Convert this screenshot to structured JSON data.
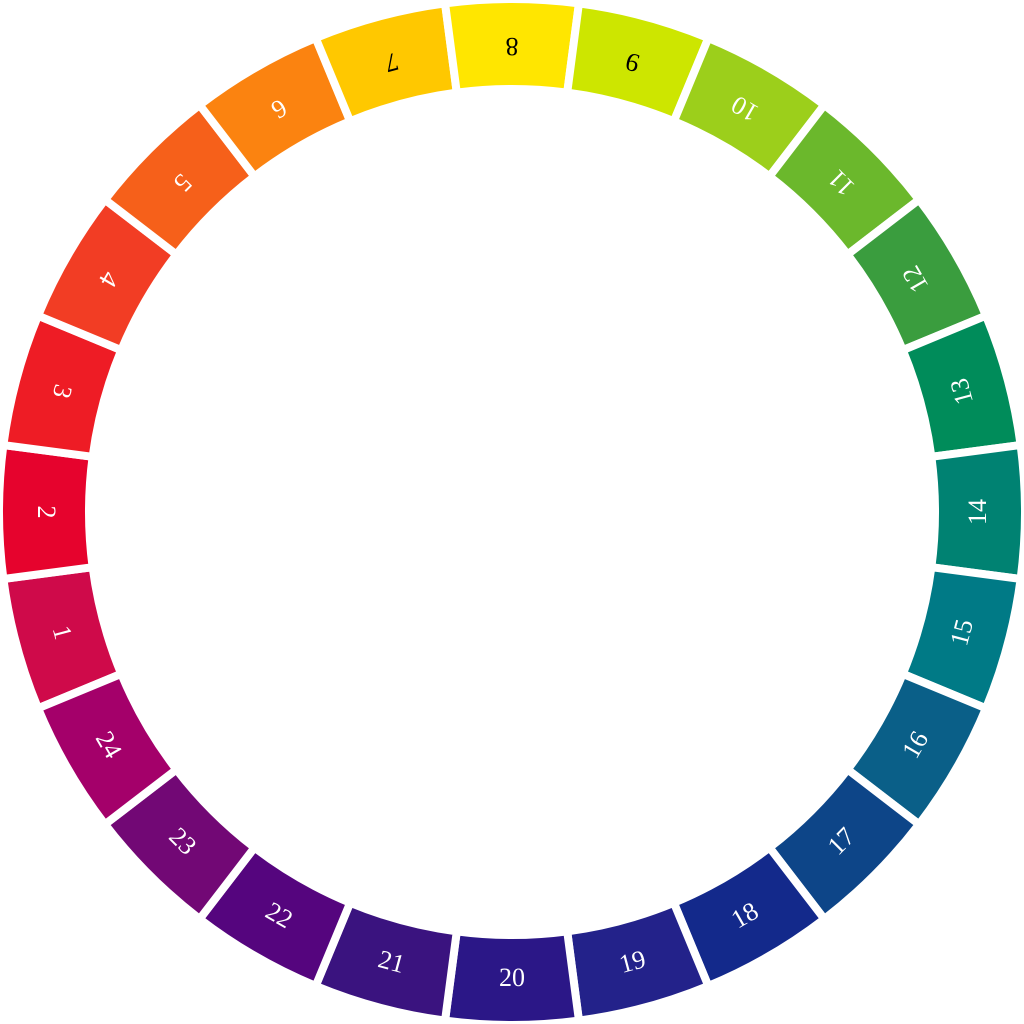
{
  "wheel": {
    "segments": [
      {
        "label": "1",
        "color": "#cf0a4a",
        "text_color": "#ffffff"
      },
      {
        "label": "2",
        "color": "#e6032d",
        "text_color": "#ffffff"
      },
      {
        "label": "3",
        "color": "#ee1c25",
        "text_color": "#ffffff"
      },
      {
        "label": "4",
        "color": "#f23d24",
        "text_color": "#ffffff"
      },
      {
        "label": "5",
        "color": "#f6601a",
        "text_color": "#ffffff"
      },
      {
        "label": "6",
        "color": "#fb8310",
        "text_color": "#ffffff"
      },
      {
        "label": "7",
        "color": "#ffc800",
        "text_color": "#000000"
      },
      {
        "label": "8",
        "color": "#ffe600",
        "text_color": "#000000"
      },
      {
        "label": "9",
        "color": "#cde600",
        "text_color": "#000000"
      },
      {
        "label": "10",
        "color": "#9ccf1b",
        "text_color": "#ffffff"
      },
      {
        "label": "11",
        "color": "#6bb82c",
        "text_color": "#ffffff"
      },
      {
        "label": "12",
        "color": "#3a9d3e",
        "text_color": "#ffffff"
      },
      {
        "label": "13",
        "color": "#008c5a",
        "text_color": "#ffffff"
      },
      {
        "label": "14",
        "color": "#008272",
        "text_color": "#ffffff"
      },
      {
        "label": "15",
        "color": "#007a86",
        "text_color": "#ffffff"
      },
      {
        "label": "16",
        "color": "#0a5f88",
        "text_color": "#ffffff"
      },
      {
        "label": "17",
        "color": "#0d4588",
        "text_color": "#ffffff"
      },
      {
        "label": "18",
        "color": "#13298b",
        "text_color": "#ffffff"
      },
      {
        "label": "19",
        "color": "#23228a",
        "text_color": "#ffffff"
      },
      {
        "label": "20",
        "color": "#2b1787",
        "text_color": "#ffffff"
      },
      {
        "label": "21",
        "color": "#3a137f",
        "text_color": "#ffffff"
      },
      {
        "label": "22",
        "color": "#55057e",
        "text_color": "#ffffff"
      },
      {
        "label": "23",
        "color": "#720875",
        "text_color": "#ffffff"
      },
      {
        "label": "24",
        "color": "#a4006a",
        "text_color": "#ffffff"
      }
    ]
  }
}
